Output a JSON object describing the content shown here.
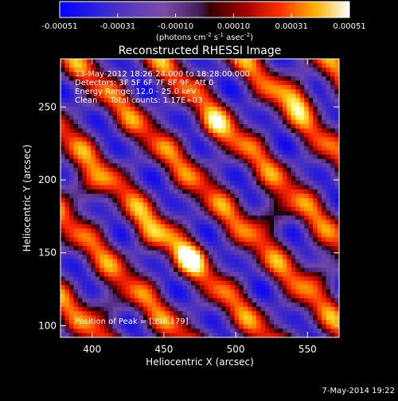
{
  "chart_data": {
    "type": "heatmap",
    "title": "Reconstructed RHESSI Image",
    "xlabel": "Heliocentric X (arcsec)",
    "ylabel": "Heliocentric Y (arcsec)",
    "xlim": [
      378,
      572
    ],
    "ylim": [
      92,
      283
    ],
    "x_ticks": [
      400,
      450,
      500,
      550
    ],
    "y_ticks": [
      100,
      150,
      200,
      250
    ],
    "colorbar": {
      "range": [
        -0.00051,
        0.00051
      ],
      "tick_labels": [
        "-0.00051",
        "-0.00031",
        "-0.00010",
        "0.00010",
        "0.00031",
        "0.00051"
      ],
      "unit_prefix": "(photons cm",
      "unit_exp1": "-2",
      "unit_mid1": " s",
      "unit_exp2": "-1",
      "unit_mid2": " asec",
      "unit_exp3": "-2",
      "unit_suffix": ")"
    },
    "annotations": {
      "line1": "13-May-2012 18:26:24.000 to 18:28:00.000",
      "line2": "Detectors: 3F 5F 6F 7F 8F 9F, Att 0",
      "line3": "Energy Range: 12.0 - 25.0 keV",
      "line4": "Clean     Total counts: 1.17E+03",
      "peak": "Position of Peak = [398,179]"
    },
    "peak_position": [
      398,
      179
    ],
    "footer_date": "7-May-2014 19:22"
  }
}
